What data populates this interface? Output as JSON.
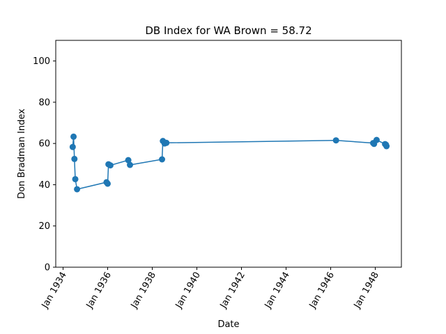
{
  "chart_data": {
    "type": "line",
    "title": "DB Index for WA Brown = 58.72",
    "xlabel": "Date",
    "ylabel": "Don Bradman Index",
    "ylim": [
      0,
      110
    ],
    "yticks": [
      0,
      20,
      40,
      60,
      80,
      100
    ],
    "xticks": [
      "Jan 1934",
      "Jan 1936",
      "Jan 1938",
      "Jan 1940",
      "Jan 1942",
      "Jan 1944",
      "Jan 1946",
      "Jan 1948"
    ],
    "grid": false,
    "marker": "circle",
    "color": "#1f77b4",
    "series": [
      {
        "x": [
          "1934-06-08",
          "1934-06-22",
          "1934-07-06",
          "1934-07-20",
          "1934-08-18",
          "1935-12-14",
          "1936-01-01",
          "1936-01-15",
          "1936-02-15",
          "1936-12-04",
          "1937-01-01",
          "1938-06-10",
          "1938-06-24",
          "1938-07-22",
          "1938-08-20",
          "1946-03-29",
          "1947-11-28",
          "1947-12-12",
          "1948-01-23",
          "1948-06-10",
          "1948-06-24",
          "1948-07-03"
        ],
        "y": [
          58.3,
          63.3,
          52.5,
          42.7,
          37.8,
          41.2,
          40.5,
          49.9,
          49.4,
          51.9,
          49.6,
          52.3,
          61.2,
          60.0,
          60.3,
          61.5,
          60.2,
          59.8,
          61.7,
          59.7,
          59.4,
          58.7
        ]
      }
    ]
  }
}
